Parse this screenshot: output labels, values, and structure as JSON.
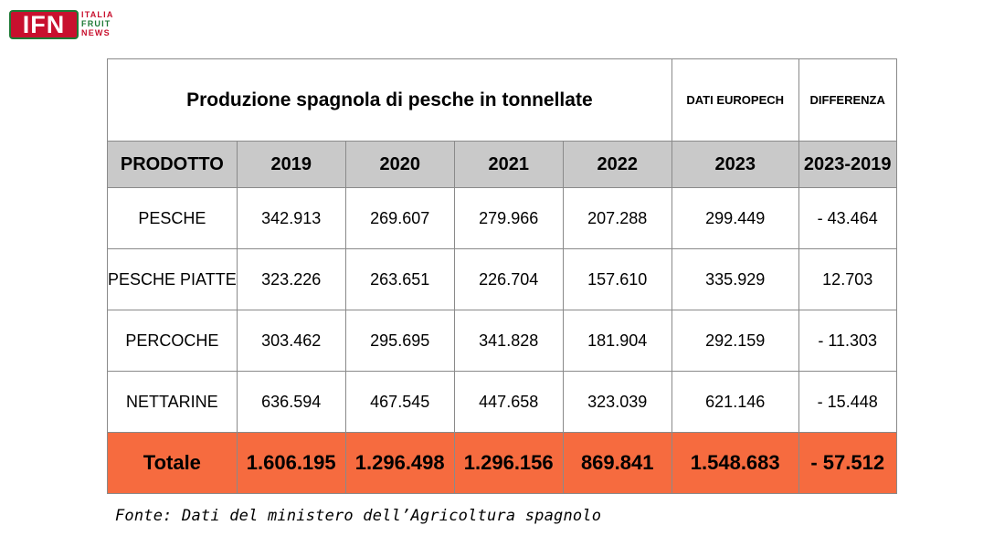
{
  "logo": {
    "mark": "IFN",
    "words": [
      "ITALIA",
      "FRUIT",
      "NEWS"
    ],
    "colors": {
      "red": "#c8102e",
      "green": "#1d7a36"
    }
  },
  "table": {
    "title": "Produzione spagnola di pesche in tonnellate",
    "col_2023_note": "DATI EUROPECH",
    "col_diff_note": "DIFFERENZA",
    "headers": [
      "PRODOTTO",
      "2019",
      "2020",
      "2021",
      "2022",
      "2023",
      "2023-2019"
    ],
    "rows": [
      [
        "PESCHE",
        "342.913",
        "269.607",
        "279.966",
        "207.288",
        "299.449",
        "- 43.464"
      ],
      [
        "PESCHE PIATTE",
        "323.226",
        "263.651",
        "226.704",
        "157.610",
        "335.929",
        "12.703"
      ],
      [
        "PERCOCHE",
        "303.462",
        "295.695",
        "341.828",
        "181.904",
        "292.159",
        "- 11.303"
      ],
      [
        "NETTARINE",
        "636.594",
        "467.545",
        "447.658",
        "323.039",
        "621.146",
        "- 15.448"
      ]
    ],
    "total": [
      "Totale",
      "1.606.195",
      "1.296.498",
      "1.296.156",
      "869.841",
      "1.548.683",
      "- 57.512"
    ],
    "colors": {
      "header_bg": "#c9c9c9",
      "total_bg": "#f66b3f",
      "border": "#8a8a8a"
    }
  },
  "source": "Fonte: Dati del ministero dell’Agricoltura spagnolo"
}
